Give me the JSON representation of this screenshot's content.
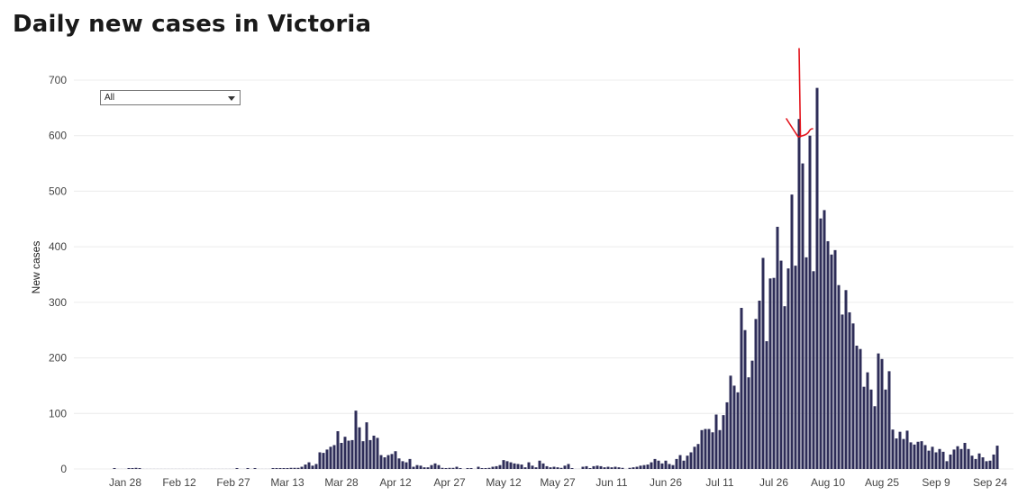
{
  "title": "Daily new cases in Victoria",
  "filter": {
    "selected": "All"
  },
  "chart_data": {
    "type": "bar",
    "title": "Daily new cases in Victoria",
    "ylabel": "New cases",
    "xlabel": "",
    "ylim": [
      0,
      700
    ],
    "yticks": [
      0,
      100,
      200,
      300,
      400,
      500,
      600,
      700
    ],
    "grid": true,
    "start_date": "2020-01-25",
    "x_ticks": [
      {
        "label": "Jan 28",
        "date": "2020-01-28"
      },
      {
        "label": "Feb 12",
        "date": "2020-02-12"
      },
      {
        "label": "Feb 27",
        "date": "2020-02-27"
      },
      {
        "label": "Mar 13",
        "date": "2020-03-13"
      },
      {
        "label": "Mar 28",
        "date": "2020-03-28"
      },
      {
        "label": "Apr 12",
        "date": "2020-04-12"
      },
      {
        "label": "Apr 27",
        "date": "2020-04-27"
      },
      {
        "label": "May 12",
        "date": "2020-05-12"
      },
      {
        "label": "May 27",
        "date": "2020-05-27"
      },
      {
        "label": "Jun 11",
        "date": "2020-06-11"
      },
      {
        "label": "Jun 26",
        "date": "2020-06-26"
      },
      {
        "label": "Jul 11",
        "date": "2020-07-11"
      },
      {
        "label": "Jul 26",
        "date": "2020-07-26"
      },
      {
        "label": "Aug 10",
        "date": "2020-08-10"
      },
      {
        "label": "Aug 25",
        "date": "2020-08-25"
      },
      {
        "label": "Sep 9",
        "date": "2020-09-09"
      },
      {
        "label": "Sep 24",
        "date": "2020-09-24"
      }
    ],
    "series": [
      {
        "name": "New cases",
        "color": "#2e2d58",
        "values": [
          1,
          0,
          0,
          0,
          1,
          1,
          2,
          1,
          0,
          0,
          0,
          0,
          0,
          0,
          0,
          0,
          0,
          0,
          0,
          0,
          0,
          0,
          0,
          0,
          0,
          0,
          0,
          0,
          0,
          0,
          0,
          0,
          0,
          0,
          1,
          0,
          0,
          1,
          0,
          1,
          0,
          0,
          0,
          0,
          1,
          1,
          1,
          1,
          1,
          2,
          2,
          2,
          4,
          8,
          12,
          6,
          9,
          30,
          29,
          35,
          40,
          43,
          68,
          47,
          58,
          51,
          52,
          105,
          75,
          50,
          84,
          52,
          60,
          56,
          25,
          21,
          25,
          27,
          32,
          19,
          14,
          12,
          18,
          4,
          7,
          6,
          3,
          3,
          7,
          10,
          7,
          2,
          1,
          2,
          2,
          4,
          1,
          0,
          1,
          1,
          0,
          4,
          1,
          1,
          2,
          4,
          5,
          7,
          16,
          14,
          12,
          10,
          9,
          8,
          3,
          12,
          6,
          3,
          15,
          10,
          5,
          3,
          4,
          3,
          2,
          6,
          9,
          1,
          0,
          0,
          4,
          5,
          1,
          5,
          6,
          5,
          3,
          4,
          3,
          4,
          3,
          2,
          0,
          2,
          3,
          4,
          6,
          7,
          8,
          12,
          18,
          15,
          10,
          15,
          9,
          7,
          18,
          25,
          15,
          24,
          30,
          40,
          45,
          70,
          72,
          72,
          66,
          98,
          70,
          97,
          120,
          168,
          150,
          138,
          290,
          250,
          165,
          195,
          270,
          303,
          380,
          230,
          343,
          344,
          436,
          375,
          293,
          361,
          494,
          366,
          630,
          550,
          381,
          600,
          356,
          686,
          451,
          466,
          410,
          386,
          394,
          331,
          278,
          322,
          282,
          262,
          222,
          216,
          148,
          174,
          143,
          113,
          208,
          198,
          143,
          176,
          71,
          55,
          67,
          54,
          69,
          48,
          44,
          49,
          50,
          43,
          33,
          40,
          30,
          36,
          31,
          14,
          26,
          35,
          41,
          36,
          47,
          36,
          24,
          18,
          28,
          21,
          14,
          15,
          26,
          42
        ]
      }
    ]
  }
}
